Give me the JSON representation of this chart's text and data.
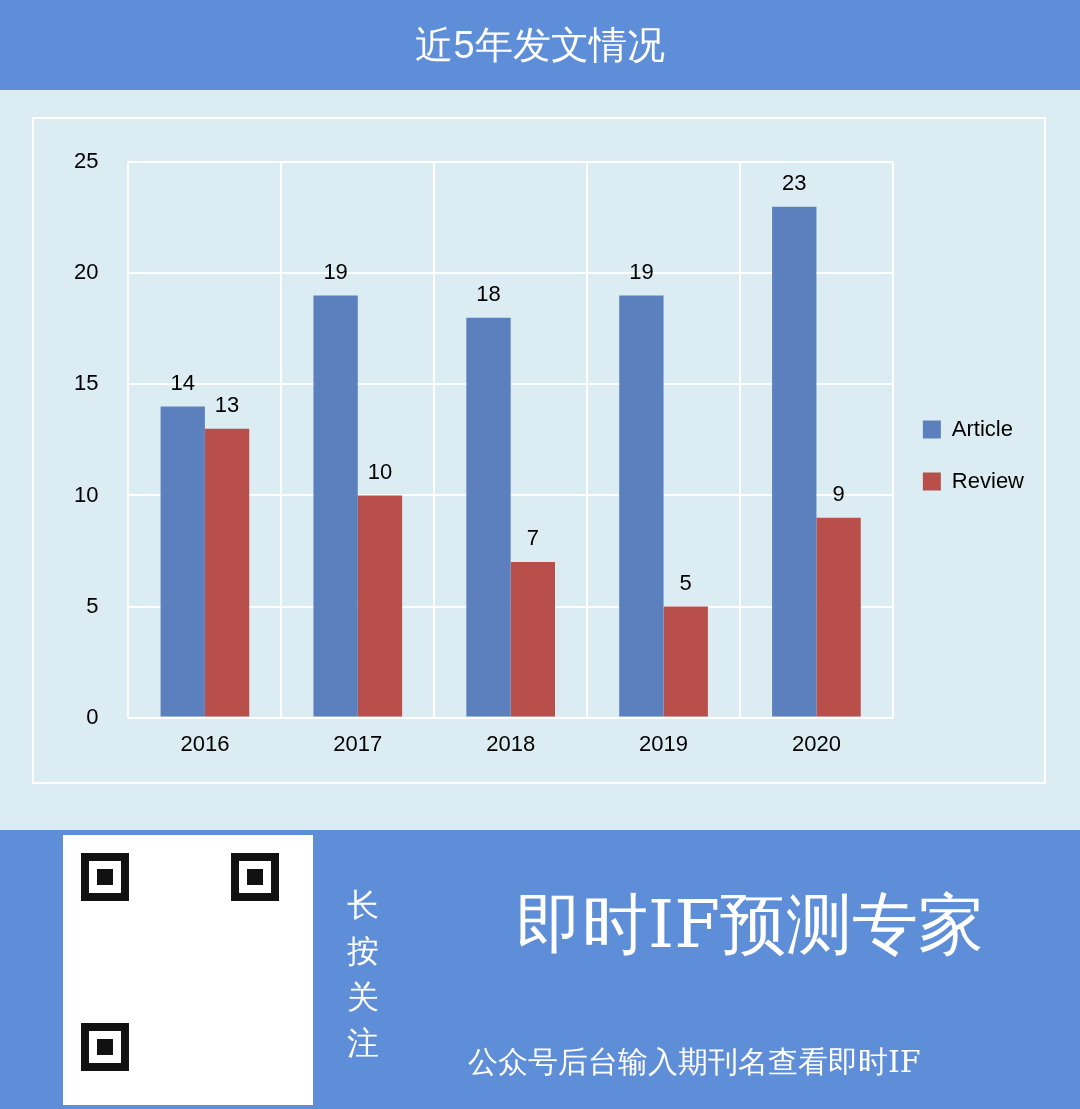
{
  "chart_data": {
    "type": "bar",
    "title": "近5年发文情况",
    "categories": [
      "2016",
      "2017",
      "2018",
      "2019",
      "2020"
    ],
    "series": [
      {
        "name": "Article",
        "color": "#5b80bd",
        "values": [
          14,
          19,
          18,
          19,
          23
        ]
      },
      {
        "name": "Review",
        "color": "#b94f4b",
        "values": [
          13,
          10,
          7,
          5,
          9
        ]
      }
    ],
    "ylim": [
      0,
      25
    ],
    "yticks": [
      0,
      5,
      10,
      15,
      20,
      25
    ],
    "grid": true,
    "legend": "right",
    "data_labels": true,
    "annotations": [
      "即时IF预测专家",
      "长按关注",
      "公众号后台输入期刊名查看即时IF"
    ]
  }
}
